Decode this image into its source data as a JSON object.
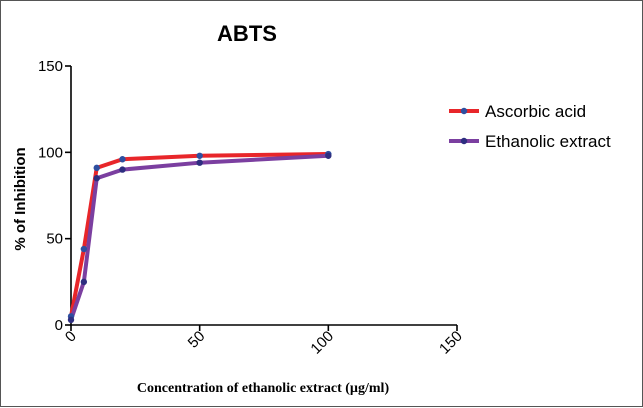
{
  "chart_data": {
    "type": "line",
    "title": "ABTS",
    "xlabel": "Concentration of ethanolic extract (µg/ml)",
    "ylabel": "% of Inhibition",
    "xlim": [
      0,
      150
    ],
    "ylim": [
      0,
      150
    ],
    "x_ticks": [
      "0",
      "50",
      "100",
      "150"
    ],
    "y_ticks": [
      "0",
      "50",
      "100",
      "150"
    ],
    "grid": false,
    "legend_position": "right",
    "series": [
      {
        "name": "Ascorbic acid",
        "color": "#e8262a",
        "marker_color": "#2e4fa0",
        "x": [
          0,
          5,
          10,
          20,
          50,
          100
        ],
        "y": [
          5,
          44,
          91,
          96,
          98,
          99
        ]
      },
      {
        "name": "Ethanolic extract",
        "color": "#7b3fa0",
        "marker_color": "#2e2e80",
        "x": [
          0,
          5,
          10,
          20,
          50,
          100
        ],
        "y": [
          3,
          25,
          85,
          90,
          94,
          98
        ]
      }
    ]
  }
}
